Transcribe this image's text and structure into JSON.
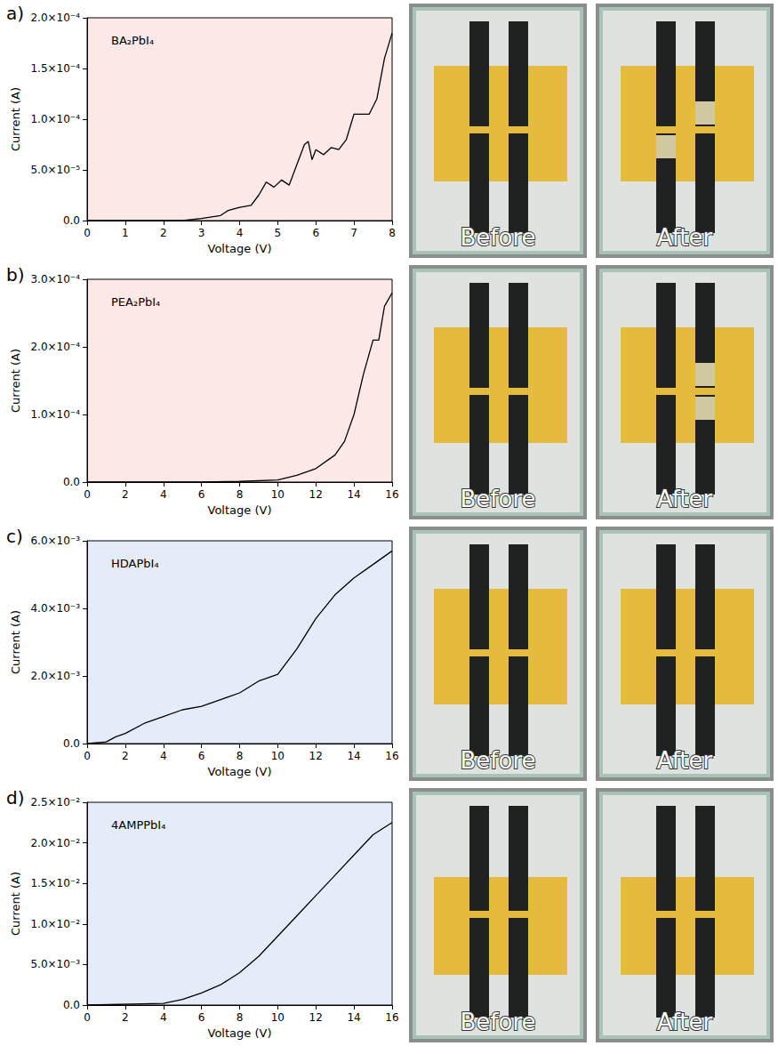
{
  "chart_data": [
    {
      "type": "line",
      "panel_label": "a)",
      "title": "BA₂PbI₄",
      "x_label": "Voltage (V)",
      "y_label": "Current (A)",
      "x": [
        0,
        2.5,
        3,
        3.5,
        3.7,
        4,
        4.3,
        4.5,
        4.7,
        4.9,
        5.1,
        5.3,
        5.5,
        5.7,
        5.8,
        5.9,
        6,
        6.2,
        6.4,
        6.6,
        6.8,
        7,
        7.2,
        7.4,
        7.6,
        7.8,
        8
      ],
      "values": [
        0,
        0,
        2e-06,
        5e-06,
        1e-05,
        1.3e-05,
        1.5e-05,
        2.5e-05,
        3.8e-05,
        3.3e-05,
        4e-05,
        3.5e-05,
        5.5e-05,
        7.5e-05,
        7.8e-05,
        6e-05,
        7e-05,
        6.5e-05,
        7.2e-05,
        7e-05,
        8e-05,
        0.000105,
        0.000105,
        0.000105,
        0.00012,
        0.00016,
        0.000185
      ],
      "color": "#000000",
      "grid": false,
      "xlim": [
        0,
        8
      ],
      "xticks": [
        0,
        1,
        2,
        3,
        4,
        5,
        6,
        7,
        8
      ],
      "ylim": [
        0,
        0.0002
      ],
      "yticks": [
        {
          "value": 0,
          "label": "0.0"
        },
        {
          "value": 5e-05,
          "label": "5.0×10⁻⁵"
        },
        {
          "value": 0.0001,
          "label": "1.0×10⁻⁴"
        },
        {
          "value": 0.00015,
          "label": "1.5×10⁻⁴"
        },
        {
          "value": 0.0002,
          "label": "2.0×10⁻⁴"
        }
      ],
      "photos": [
        "Before",
        "After"
      ]
    },
    {
      "type": "line",
      "panel_label": "b)",
      "title": "PEA₂PbI₄",
      "x_label": "Voltage (V)",
      "y_label": "Current (A)",
      "x": [
        0,
        6,
        8,
        10,
        11,
        12,
        13,
        13.5,
        14,
        14.5,
        15,
        15.3,
        15.6,
        16
      ],
      "values": [
        0,
        0,
        1e-06,
        3e-06,
        1e-05,
        2e-05,
        4e-05,
        6e-05,
        0.0001,
        0.00016,
        0.00021,
        0.00021,
        0.00026,
        0.00028
      ],
      "color": "#000000",
      "grid": false,
      "xlim": [
        0,
        16
      ],
      "xticks": [
        0,
        2,
        4,
        6,
        8,
        10,
        12,
        14,
        16
      ],
      "ylim": [
        0,
        0.0003
      ],
      "yticks": [
        {
          "value": 0,
          "label": "0.0"
        },
        {
          "value": 0.0001,
          "label": "1.0×10⁻⁴"
        },
        {
          "value": 0.0002,
          "label": "2.0×10⁻⁴"
        },
        {
          "value": 0.0003,
          "label": "3.0×10⁻⁴"
        }
      ],
      "photos": [
        "Before",
        "After"
      ]
    },
    {
      "type": "line",
      "panel_label": "c)",
      "title": "HDAPbI₄",
      "x_label": "Voltage (V)",
      "y_label": "Current (A)",
      "x": [
        0,
        1,
        1.5,
        2,
        3,
        4,
        5,
        6,
        7,
        8,
        9,
        10,
        11,
        12,
        13,
        14,
        15,
        16
      ],
      "values": [
        0,
        5e-05,
        0.0002,
        0.0003,
        0.0006,
        0.0008,
        0.001,
        0.0011,
        0.0013,
        0.0015,
        0.00185,
        0.00205,
        0.0028,
        0.0037,
        0.0044,
        0.0049,
        0.0053,
        0.0057
      ],
      "color": "#000000",
      "grid": false,
      "xlim": [
        0,
        16
      ],
      "xticks": [
        0,
        2,
        4,
        6,
        8,
        10,
        12,
        14,
        16
      ],
      "ylim": [
        0,
        0.006
      ],
      "yticks": [
        {
          "value": 0,
          "label": "0.0"
        },
        {
          "value": 0.002,
          "label": "2.0×10⁻³"
        },
        {
          "value": 0.004,
          "label": "4.0×10⁻³"
        },
        {
          "value": 0.006,
          "label": "6.0×10⁻³"
        }
      ],
      "photos": [
        "Before",
        "After"
      ]
    },
    {
      "type": "line",
      "panel_label": "d)",
      "title": "4AMPPbI₄",
      "x_label": "Voltage (V)",
      "y_label": "Current (A)",
      "x": [
        0,
        4,
        5,
        6,
        7,
        8,
        9,
        10,
        11,
        12,
        13,
        14,
        15,
        16
      ],
      "values": [
        0,
        0.0002,
        0.0007,
        0.0015,
        0.0025,
        0.004,
        0.006,
        0.0085,
        0.011,
        0.0135,
        0.016,
        0.0185,
        0.021,
        0.0225
      ],
      "color": "#000000",
      "grid": false,
      "xlim": [
        0,
        16
      ],
      "xticks": [
        0,
        2,
        4,
        6,
        8,
        10,
        12,
        14,
        16
      ],
      "ylim": [
        0,
        0.025
      ],
      "yticks": [
        {
          "value": 0,
          "label": "0.0"
        },
        {
          "value": 0.005,
          "label": "5.0×10⁻³"
        },
        {
          "value": 0.01,
          "label": "1.0×10⁻²"
        },
        {
          "value": 0.015,
          "label": "1.5×10⁻²"
        },
        {
          "value": 0.02,
          "label": "2.0×10⁻²"
        },
        {
          "value": 0.025,
          "label": "2.5×10⁻²"
        }
      ],
      "photos": [
        "Before",
        "After"
      ]
    }
  ]
}
